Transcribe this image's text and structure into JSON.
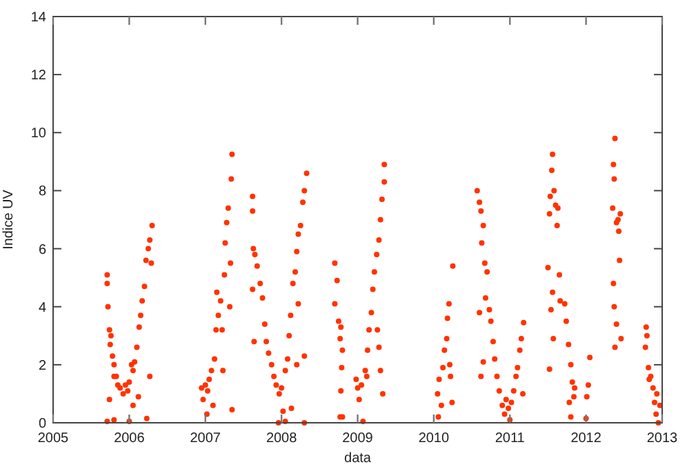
{
  "chart_data": {
    "type": "scatter",
    "xlabel": "data",
    "ylabel": "Indice UV",
    "xlim": [
      2005,
      2013
    ],
    "ylim": [
      0,
      14
    ],
    "xticks": [
      2005,
      2006,
      2007,
      2008,
      2009,
      2010,
      2011,
      2012,
      2013
    ],
    "yticks": [
      0,
      2,
      4,
      6,
      8,
      10,
      12,
      14
    ],
    "marker": "circle",
    "x": [
      2005.71,
      2005.71,
      2005.72,
      2005.74,
      2005.75,
      2005.76,
      2005.78,
      2005.8,
      2005.8,
      2005.83,
      2005.85,
      2005.88,
      2005.92,
      2005.95,
      2005.98,
      2006.0,
      2006.03,
      2006.05,
      2006.07,
      2006.1,
      2006.13,
      2006.15,
      2006.17,
      2006.2,
      2006.22,
      2006.25,
      2006.27,
      2006.3,
      2006.29,
      2006.27,
      2006.23,
      2005.71,
      2005.8,
      2006.0,
      2005.74,
      2006.12,
      2006.05,
      2006.95,
      2006.97,
      2007.0,
      2007.03,
      2007.05,
      2007.08,
      2007.1,
      2007.12,
      2007.14,
      2007.15,
      2007.17,
      2007.2,
      2007.22,
      2007.23,
      2007.25,
      2007.26,
      2007.28,
      2007.3,
      2007.33,
      2007.34,
      2007.35,
      2007.35,
      2007.32,
      2007.02,
      2007.62,
      2007.62,
      2007.63,
      2007.62,
      2007.65,
      2007.68,
      2007.72,
      2007.75,
      2007.78,
      2007.8,
      2007.64,
      2007.83,
      2007.87,
      2007.9,
      2007.93,
      2007.97,
      2008.0,
      2008.02,
      2007.96,
      2008.05,
      2008.08,
      2008.1,
      2008.12,
      2008.15,
      2008.18,
      2008.2,
      2008.22,
      2008.25,
      2008.28,
      2008.3,
      2008.33,
      2008.2,
      2008.3,
      2008.3,
      2008.05,
      2008.13,
      2008.22,
      2008.7,
      2008.7,
      2008.73,
      2008.75,
      2008.77,
      2008.78,
      2008.8,
      2008.79,
      2008.78,
      2008.77,
      2008.8,
      2008.98,
      2009.0,
      2009.02,
      2009.05,
      2009.07,
      2009.1,
      2009.12,
      2009.13,
      2009.15,
      2009.18,
      2009.2,
      2009.22,
      2009.25,
      2009.26,
      2009.28,
      2009.3,
      2009.32,
      2009.35,
      2009.35,
      2009.3,
      2009.33,
      2009.28,
      2010.05,
      2010.06,
      2010.07,
      2010.1,
      2010.12,
      2010.14,
      2010.17,
      2010.18,
      2010.2,
      2010.22,
      2010.24,
      2010.25,
      2010.21,
      2010.57,
      2010.6,
      2010.62,
      2010.65,
      2010.63,
      2010.67,
      2010.7,
      2010.68,
      2010.73,
      2010.75,
      2010.6,
      2010.78,
      2010.8,
      2010.65,
      2010.83,
      2010.86,
      2010.9,
      2010.93,
      2010.95,
      2010.98,
      2011.0,
      2011.02,
      2011.05,
      2011.08,
      2011.1,
      2011.13,
      2011.15,
      2011.18,
      2011.17,
      2010.62,
      2011.5,
      2011.52,
      2011.53,
      2011.55,
      2011.56,
      2011.58,
      2011.6,
      2011.62,
      2011.63,
      2011.65,
      2011.66,
      2011.56,
      2011.54,
      2011.57,
      2011.52,
      2011.72,
      2011.74,
      2011.77,
      2011.8,
      2011.82,
      2011.78,
      2011.8,
      2011.84,
      2011.85,
      2012.0,
      2012.01,
      2012.03,
      2012.05,
      2012.35,
      2012.36,
      2012.37,
      2012.38,
      2012.36,
      2012.37,
      2012.38,
      2012.4,
      2012.42,
      2012.43,
      2012.45,
      2012.44,
      2012.46,
      2012.4,
      2012.78,
      2012.79,
      2012.8,
      2012.82,
      2012.83,
      2012.85,
      2012.88,
      2012.9,
      2012.92,
      2012.95,
      2012.97,
      2012.93
    ],
    "series": [
      {
        "color": "#ff3300",
        "values": [
          5.1,
          4.8,
          4.0,
          3.2,
          2.7,
          3.0,
          2.3,
          2.0,
          1.6,
          1.6,
          1.3,
          1.2,
          1.0,
          1.3,
          1.1,
          1.4,
          2.0,
          1.8,
          2.1,
          2.6,
          3.3,
          3.7,
          4.2,
          4.7,
          5.6,
          6.0,
          6.3,
          6.8,
          5.5,
          1.6,
          0.15,
          0.05,
          0.1,
          0.05,
          0.8,
          0.9,
          0.6,
          1.2,
          0.8,
          1.3,
          1.1,
          1.5,
          1.8,
          0.6,
          2.2,
          3.2,
          4.5,
          3.7,
          4.2,
          3.2,
          1.8,
          5.1,
          6.2,
          6.9,
          7.4,
          5.5,
          8.4,
          9.25,
          0.45,
          4.0,
          0.3,
          7.8,
          7.3,
          6.0,
          4.6,
          5.8,
          5.4,
          4.8,
          4.3,
          3.4,
          2.8,
          2.8,
          2.4,
          2.0,
          1.6,
          1.3,
          1.0,
          1.2,
          0.4,
          0.0,
          1.8,
          2.2,
          3.0,
          3.7,
          4.8,
          5.2,
          5.9,
          6.5,
          6.8,
          7.6,
          8.0,
          8.6,
          2.0,
          2.3,
          0.0,
          0.05,
          0.5,
          4.1,
          5.5,
          4.1,
          4.9,
          3.5,
          2.9,
          3.3,
          2.5,
          1.9,
          1.1,
          0.2,
          0.2,
          1.5,
          1.2,
          0.8,
          1.3,
          0.05,
          1.8,
          1.6,
          2.5,
          3.2,
          3.8,
          4.6,
          5.2,
          5.8,
          3.2,
          6.3,
          7.0,
          7.7,
          8.3,
          8.9,
          1.8,
          1.0,
          2.6,
          1.0,
          0.2,
          1.5,
          0.6,
          1.9,
          2.5,
          2.9,
          3.6,
          4.1,
          1.6,
          0.7,
          5.4,
          2.0,
          8.0,
          7.6,
          7.3,
          6.8,
          6.2,
          5.5,
          5.2,
          4.3,
          3.9,
          3.5,
          3.8,
          2.8,
          2.2,
          2.1,
          1.6,
          1.1,
          0.6,
          0.3,
          0.8,
          0.5,
          0.1,
          0.7,
          1.1,
          1.6,
          1.9,
          2.5,
          2.9,
          3.45,
          1.0,
          1.6,
          5.35,
          7.2,
          7.8,
          8.7,
          9.25,
          8.0,
          7.5,
          6.8,
          7.4,
          5.1,
          4.2,
          4.5,
          3.9,
          2.9,
          1.85,
          4.1,
          3.5,
          2.7,
          2.0,
          1.4,
          0.7,
          0.2,
          0.9,
          1.2,
          0.15,
          0.9,
          1.3,
          2.25,
          7.4,
          8.9,
          8.4,
          9.8,
          4.8,
          4.0,
          2.6,
          3.4,
          7.0,
          6.6,
          7.2,
          5.6,
          2.9,
          6.9,
          2.6,
          3.3,
          3.0,
          1.9,
          1.5,
          1.6,
          1.2,
          0.7,
          0.3,
          0.0,
          0.6,
          1.0
        ]
      }
    ]
  }
}
